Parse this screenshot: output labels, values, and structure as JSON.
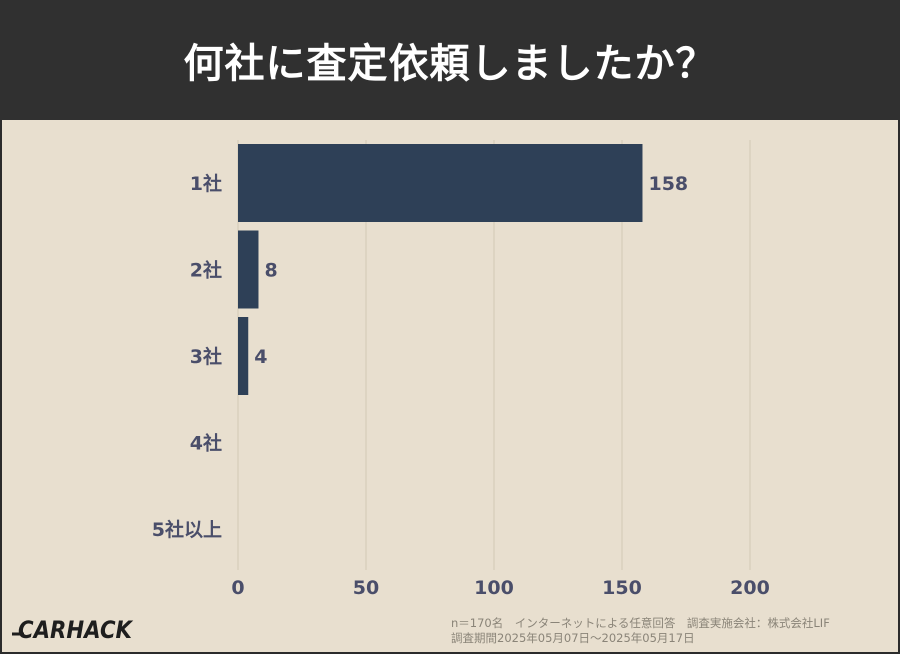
{
  "title": "何社に査定依頼しましたか？",
  "chart_data": {
    "type": "bar",
    "orientation": "horizontal",
    "categories": [
      "1社",
      "2社",
      "3社",
      "4社",
      "5社以上"
    ],
    "values": [
      158,
      8,
      4,
      0,
      0
    ],
    "data_labels": [
      "158",
      "8",
      "4",
      "",
      ""
    ],
    "xlim": [
      0,
      200
    ],
    "xticks": [
      0,
      50,
      100,
      150,
      200
    ],
    "xtick_labels": [
      "0",
      "50",
      "100",
      "150",
      "200"
    ],
    "grid": "vertical",
    "bar_color": "#2e4057"
  },
  "logo_text": "CARHACK",
  "footnote": {
    "line1": "n＝170名　インターネットによる任意回答　調査実施会社：株式会社LIF",
    "line2": "調査期間2025年05月07日～2025年05月17日"
  },
  "colors": {
    "header_bg": "#303030",
    "background": "#e8dfcf",
    "bar": "#2e4057",
    "label_text": "#4a4e6a",
    "grid": "#d6ccba"
  }
}
